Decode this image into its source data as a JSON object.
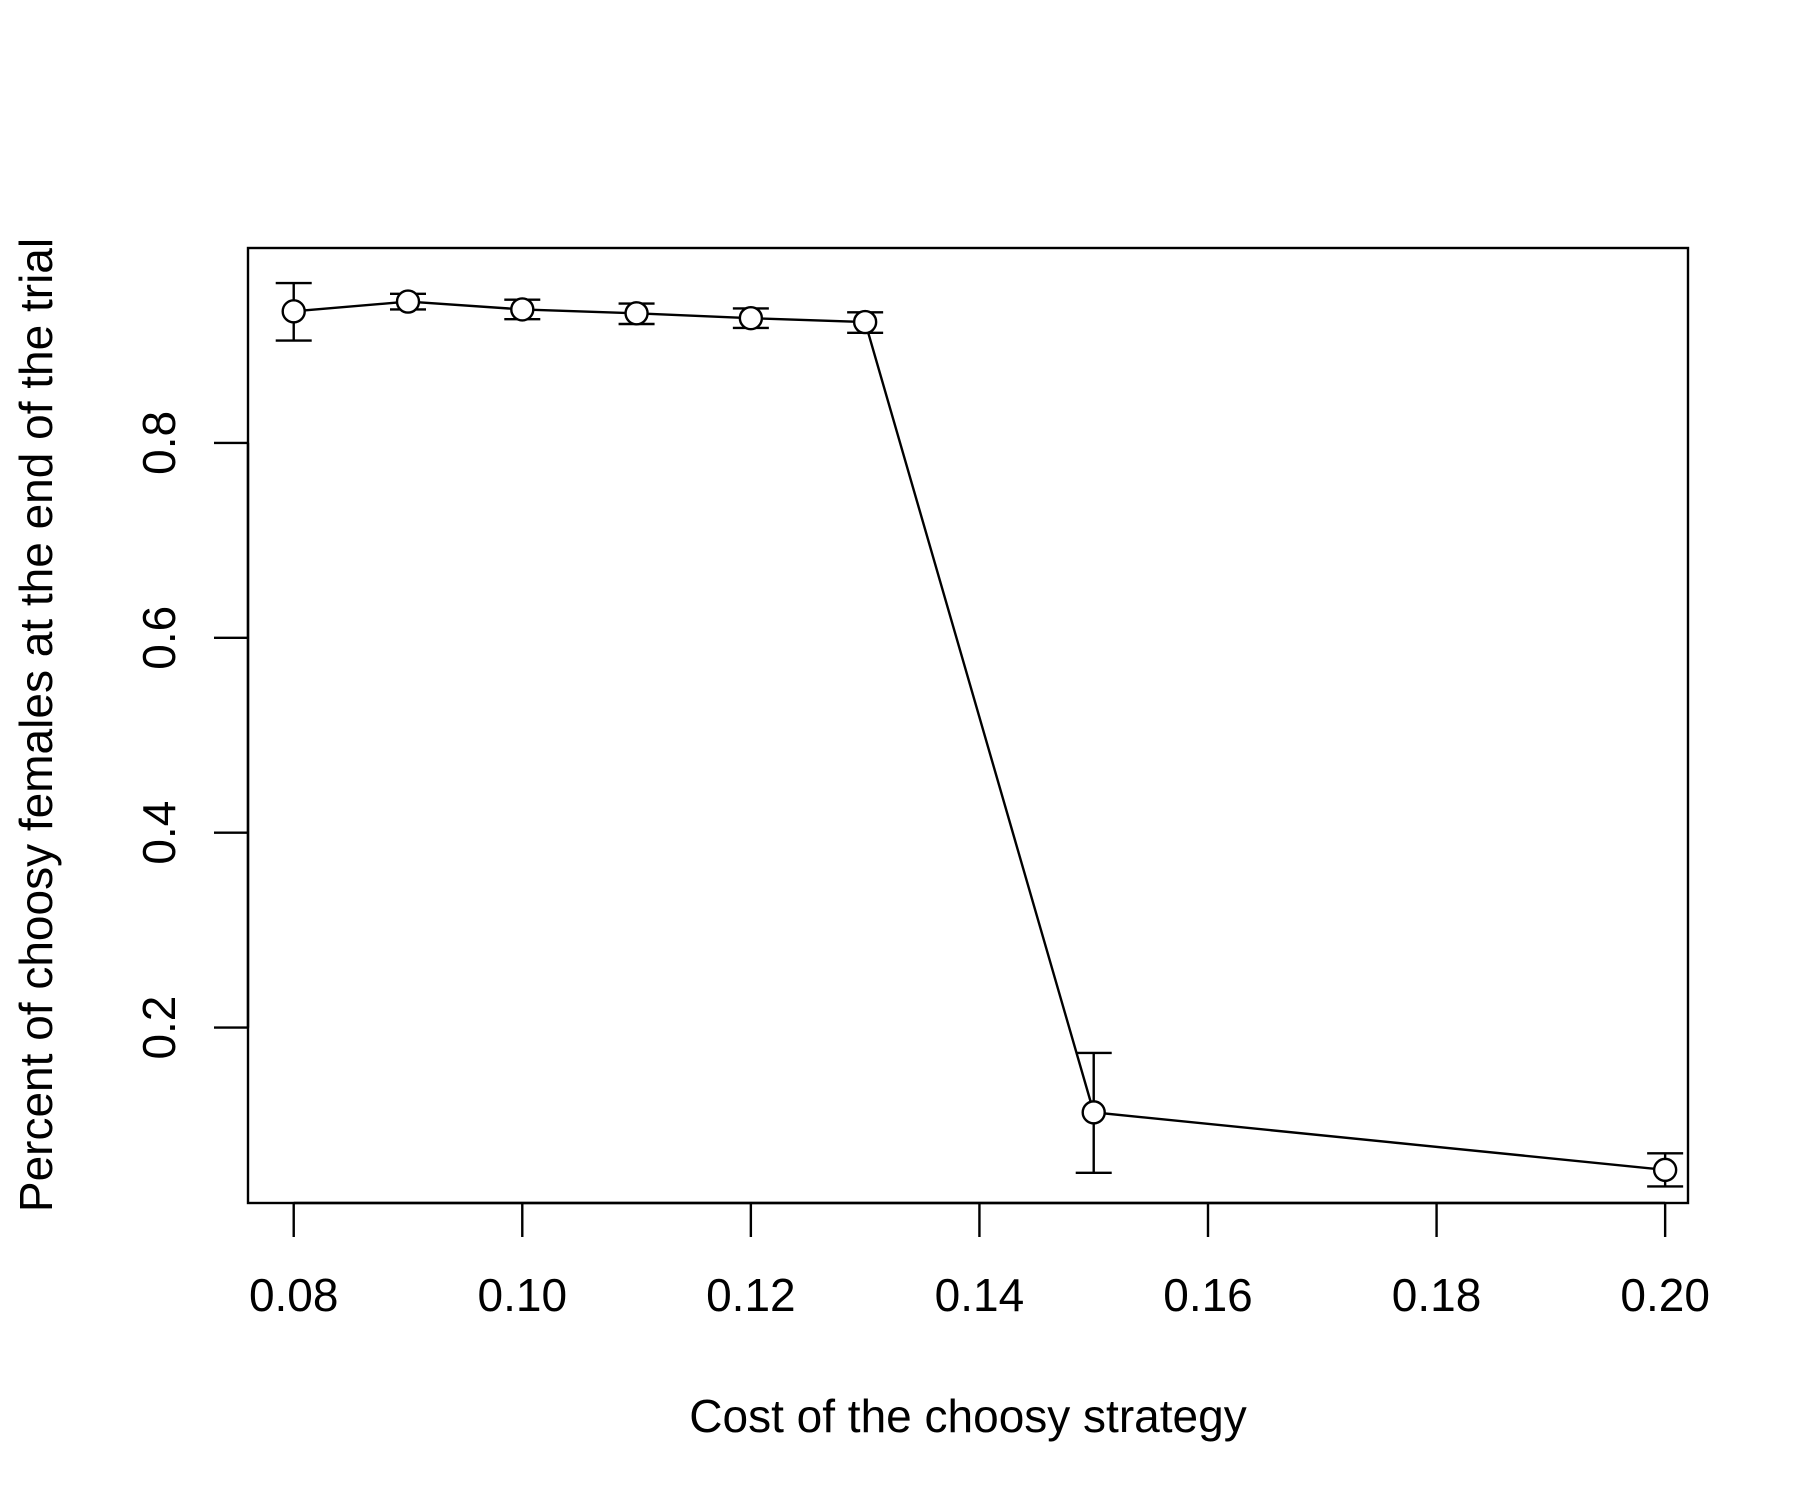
{
  "chart_data": {
    "type": "line",
    "title": "",
    "xlabel": "Cost of the choosy strategy",
    "ylabel": "Percent of choosy females at the end of the trial",
    "xlim": [
      0.076,
      0.202
    ],
    "ylim": [
      0.02,
      1.0
    ],
    "x_ticks": [
      0.08,
      0.1,
      0.12,
      0.14,
      0.16,
      0.18,
      0.2
    ],
    "x_tick_labels": [
      "0.08",
      "0.10",
      "0.12",
      "0.14",
      "0.16",
      "0.18",
      "0.20"
    ],
    "y_ticks": [
      0.2,
      0.4,
      0.6,
      0.8
    ],
    "y_tick_labels": [
      "0.2",
      "0.4",
      "0.6",
      "0.8"
    ],
    "grid": false,
    "legend": "none",
    "color": "#000000",
    "series": [
      {
        "x": [
          0.08,
          0.09,
          0.1,
          0.11,
          0.12,
          0.13,
          0.15,
          0.2
        ],
        "y": [
          0.935,
          0.945,
          0.937,
          0.933,
          0.928,
          0.924,
          0.113,
          0.054
        ],
        "err_low": [
          0.905,
          0.937,
          0.927,
          0.922,
          0.918,
          0.913,
          0.051,
          0.037
        ],
        "err_high": [
          0.964,
          0.953,
          0.947,
          0.943,
          0.938,
          0.934,
          0.174,
          0.071
        ]
      }
    ]
  }
}
